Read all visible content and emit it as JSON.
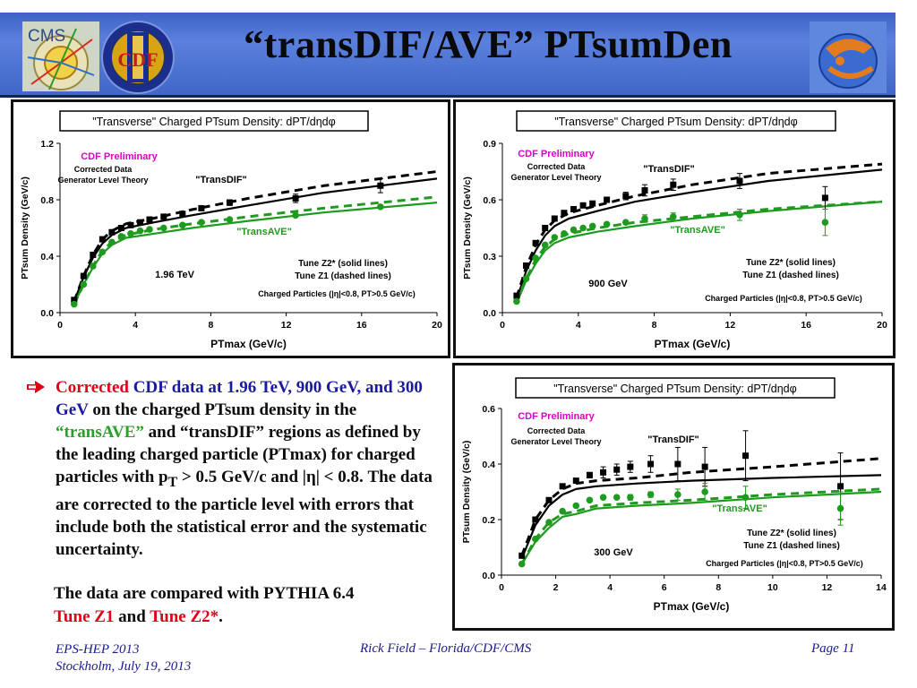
{
  "slide": {
    "title": "“transDIF/AVE” PTsumDen",
    "logos": {
      "cms_text": "CMS",
      "cdf_text": "CDF"
    }
  },
  "body": {
    "bullet_red": "Corrected",
    "bullet_blue": "CDF data at 1.96 TeV, 900 GeV, and 300 GeV",
    "bullet_a": " on the charged PTsum density in the ",
    "bullet_green": "“transAVE”",
    "bullet_b": " and “transDIF” regions as defined by the leading charged particle (PTmax) for charged particles with p",
    "bullet_sub": "T",
    "bullet_c": " > 0.5 GeV/c and |η| < 0.8. The data are corrected to the particle level with errors that include both the statistical error and the systematic uncertainty.",
    "closing_a": "The data are compared with PYTHIA 6.4",
    "closing_red1": "Tune Z1",
    "closing_and": " and ",
    "closing_red2": "Tune Z2*",
    "closing_end": "."
  },
  "footer": {
    "left1": "EPS-HEP 2013",
    "left2": "Stockholm, July 19, 2013",
    "center": "Rick Field – Florida/CDF/CMS",
    "right": "Page 11"
  },
  "colors": {
    "black": "#000000",
    "green": "#1e9a1e",
    "magenta": "#e000c8",
    "header_blue": "#4a6fd0"
  },
  "chart_data": [
    {
      "type": "line",
      "title": "\"Transverse\" Charged PTsum Density: dPT/dηdφ",
      "xlabel": "PTmax  (GeV/c)",
      "ylabel": "PTsum Density (GeV/c)",
      "xlim": [
        0,
        20
      ],
      "ylim": [
        0,
        1.2
      ],
      "xticks": [
        0,
        4,
        8,
        12,
        16,
        20
      ],
      "yticks": [
        0.0,
        0.4,
        0.8,
        1.2
      ],
      "ytick_labels": [
        "0.0",
        "0.4",
        "0.8",
        "1.2"
      ],
      "annotations": {
        "prelim": "CDF Preliminary",
        "corrected": "Corrected Data",
        "generator": "Generator Level Theory",
        "transdif": "\"TransDIF\"",
        "transave": "\"TransAVE\"",
        "energy": "1.96 TeV",
        "tune_solid": "Tune Z2* (solid lines)",
        "tune_dashed": "Tune Z1 (dashed lines)",
        "cuts": "Charged Particles (|η|<0.8, PT>0.5 GeV/c)"
      },
      "series": [
        {
          "name": "\"TransDIF\"",
          "kind": "data",
          "color": "#000000",
          "marker": "square",
          "x": [
            0.75,
            1.25,
            1.75,
            2.25,
            2.75,
            3.25,
            3.75,
            4.25,
            4.75,
            5.5,
            6.5,
            7.5,
            9,
            12.5,
            17
          ],
          "y": [
            0.09,
            0.26,
            0.41,
            0.52,
            0.57,
            0.6,
            0.62,
            0.64,
            0.66,
            0.68,
            0.7,
            0.74,
            0.78,
            0.81,
            0.9
          ],
          "err": [
            0,
            0,
            0,
            0,
            0,
            0,
            0,
            0,
            0,
            0,
            0,
            0,
            0.02,
            0.03,
            0.05
          ]
        },
        {
          "name": "\"TransAVE\"",
          "kind": "data",
          "color": "#1e9a1e",
          "marker": "circle",
          "x": [
            0.75,
            1.25,
            1.75,
            2.25,
            2.75,
            3.25,
            3.75,
            4.25,
            4.75,
            5.5,
            6.5,
            7.5,
            9,
            12.5,
            17
          ],
          "y": [
            0.06,
            0.2,
            0.33,
            0.43,
            0.5,
            0.54,
            0.56,
            0.58,
            0.59,
            0.6,
            0.62,
            0.64,
            0.66,
            0.69,
            0.75
          ],
          "err": [
            0,
            0,
            0,
            0,
            0,
            0,
            0,
            0,
            0,
            0,
            0,
            0,
            0,
            0,
            0
          ]
        },
        {
          "name": "Tune Z2* transDIF",
          "kind": "curve",
          "color": "#000000",
          "dash": false,
          "x": [
            0.75,
            1.25,
            1.75,
            2.25,
            2.75,
            3.5,
            5,
            7,
            10,
            14,
            20
          ],
          "y": [
            0.08,
            0.25,
            0.39,
            0.49,
            0.55,
            0.6,
            0.64,
            0.69,
            0.76,
            0.85,
            0.95
          ]
        },
        {
          "name": "Tune Z1 transDIF",
          "kind": "curve",
          "color": "#000000",
          "dash": true,
          "x": [
            0.75,
            1.25,
            1.75,
            2.25,
            2.75,
            3.5,
            5,
            7,
            10,
            14,
            20
          ],
          "y": [
            0.08,
            0.26,
            0.41,
            0.52,
            0.58,
            0.63,
            0.67,
            0.73,
            0.81,
            0.9,
            1.0
          ]
        },
        {
          "name": "Tune Z2* transAVE",
          "kind": "curve",
          "color": "#1e9a1e",
          "dash": false,
          "x": [
            0.75,
            1.25,
            1.75,
            2.25,
            2.75,
            3.5,
            5,
            7,
            10,
            14,
            20
          ],
          "y": [
            0.06,
            0.2,
            0.32,
            0.42,
            0.48,
            0.53,
            0.56,
            0.6,
            0.65,
            0.71,
            0.78
          ]
        },
        {
          "name": "Tune Z1 transAVE",
          "kind": "curve",
          "color": "#1e9a1e",
          "dash": true,
          "x": [
            0.75,
            1.25,
            1.75,
            2.25,
            2.75,
            3.5,
            5,
            7,
            10,
            14,
            20
          ],
          "y": [
            0.06,
            0.2,
            0.33,
            0.44,
            0.5,
            0.55,
            0.59,
            0.63,
            0.68,
            0.74,
            0.82
          ]
        }
      ]
    },
    {
      "type": "line",
      "title": "\"Transverse\" Charged PTsum Density: dPT/dηdφ",
      "xlabel": "PTmax  (GeV/c)",
      "ylabel": "PTsum Density (GeV/c)",
      "xlim": [
        0,
        20
      ],
      "ylim": [
        0,
        0.9
      ],
      "xticks": [
        0,
        4,
        8,
        12,
        16,
        20
      ],
      "yticks": [
        0.0,
        0.3,
        0.6,
        0.9
      ],
      "ytick_labels": [
        "0.0",
        "0.3",
        "0.6",
        "0.9"
      ],
      "annotations": {
        "prelim": "CDF Preliminary",
        "corrected": "Corrected Data",
        "generator": "Generator Level Theory",
        "transdif": "\"TransDIF\"",
        "transave": "\"TransAVE\"",
        "energy": "900 GeV",
        "tune_solid": "Tune Z2* (solid lines)",
        "tune_dashed": "Tune Z1 (dashed lines)",
        "cuts": "Charged Particles (|η|<0.8, PT>0.5 GeV/c)"
      },
      "series": [
        {
          "name": "\"TransDIF\"",
          "kind": "data",
          "color": "#000000",
          "marker": "square",
          "x": [
            0.75,
            1.25,
            1.75,
            2.25,
            2.75,
            3.25,
            3.75,
            4.25,
            4.75,
            5.5,
            6.5,
            7.5,
            9,
            12.5,
            17
          ],
          "y": [
            0.09,
            0.25,
            0.37,
            0.45,
            0.5,
            0.53,
            0.55,
            0.57,
            0.58,
            0.6,
            0.62,
            0.65,
            0.68,
            0.7,
            0.61
          ],
          "err": [
            0,
            0,
            0,
            0,
            0,
            0,
            0,
            0,
            0,
            0,
            0.02,
            0.03,
            0.03,
            0.04,
            0.06
          ]
        },
        {
          "name": "\"TransAVE\"",
          "kind": "data",
          "color": "#1e9a1e",
          "marker": "circle",
          "x": [
            0.75,
            1.25,
            1.75,
            2.25,
            2.75,
            3.25,
            3.75,
            4.25,
            4.75,
            5.5,
            6.5,
            7.5,
            9,
            12.5,
            17
          ],
          "y": [
            0.06,
            0.18,
            0.29,
            0.36,
            0.4,
            0.42,
            0.44,
            0.45,
            0.46,
            0.47,
            0.48,
            0.5,
            0.51,
            0.52,
            0.48
          ],
          "err": [
            0,
            0,
            0,
            0,
            0,
            0,
            0,
            0,
            0,
            0,
            0,
            0.02,
            0.02,
            0.03,
            0.07
          ]
        },
        {
          "name": "Tune Z2* transDIF",
          "kind": "curve",
          "color": "#000000",
          "dash": false,
          "x": [
            0.75,
            1.25,
            1.75,
            2.25,
            2.75,
            3.5,
            5,
            7,
            10,
            14,
            20
          ],
          "y": [
            0.07,
            0.22,
            0.33,
            0.41,
            0.46,
            0.5,
            0.54,
            0.59,
            0.64,
            0.7,
            0.76
          ]
        },
        {
          "name": "Tune Z1 transDIF",
          "kind": "curve",
          "color": "#000000",
          "dash": true,
          "x": [
            0.75,
            1.25,
            1.75,
            2.25,
            2.75,
            3.5,
            5,
            7,
            10,
            14,
            20
          ],
          "y": [
            0.08,
            0.24,
            0.36,
            0.44,
            0.49,
            0.53,
            0.57,
            0.62,
            0.68,
            0.74,
            0.79
          ]
        },
        {
          "name": "Tune Z2* transAVE",
          "kind": "curve",
          "color": "#1e9a1e",
          "dash": false,
          "x": [
            0.75,
            1.25,
            1.75,
            2.25,
            2.75,
            3.5,
            5,
            7,
            10,
            14,
            20
          ],
          "y": [
            0.05,
            0.17,
            0.26,
            0.33,
            0.37,
            0.4,
            0.43,
            0.46,
            0.5,
            0.54,
            0.59
          ]
        },
        {
          "name": "Tune Z1 transAVE",
          "kind": "curve",
          "color": "#1e9a1e",
          "dash": true,
          "x": [
            0.75,
            1.25,
            1.75,
            2.25,
            2.75,
            3.5,
            5,
            7,
            10,
            14,
            20
          ],
          "y": [
            0.06,
            0.18,
            0.28,
            0.35,
            0.39,
            0.42,
            0.45,
            0.48,
            0.51,
            0.55,
            0.59
          ]
        }
      ]
    },
    {
      "type": "line",
      "title": "\"Transverse\" Charged PTsum Density: dPT/dηdφ",
      "xlabel": "PTmax  (GeV/c)",
      "ylabel": "PTsum Density (GeV/c)",
      "xlim": [
        0,
        14
      ],
      "ylim": [
        0,
        0.6
      ],
      "xticks": [
        0,
        2,
        4,
        6,
        8,
        10,
        12,
        14
      ],
      "yticks": [
        0.0,
        0.2,
        0.4,
        0.6
      ],
      "ytick_labels": [
        "0.0",
        "0.2",
        "0.4",
        "0.6"
      ],
      "annotations": {
        "prelim": "CDF Preliminary",
        "corrected": "Corrected Data",
        "generator": "Generator Level Theory",
        "transdif": "\"TransDIF\"",
        "transave": "\"TransAVE\"",
        "energy": "300 GeV",
        "tune_solid": "Tune Z2* (solid lines)",
        "tune_dashed": "Tune Z1 (dashed lines)",
        "cuts": "Charged Particles (|η|<0.8, PT>0.5 GeV/c)"
      },
      "series": [
        {
          "name": "\"TransDIF\"",
          "kind": "data",
          "color": "#000000",
          "marker": "square",
          "x": [
            0.75,
            1.25,
            1.75,
            2.25,
            2.75,
            3.25,
            3.75,
            4.25,
            4.75,
            5.5,
            6.5,
            7.5,
            9,
            12.5
          ],
          "y": [
            0.07,
            0.2,
            0.27,
            0.32,
            0.34,
            0.36,
            0.37,
            0.38,
            0.39,
            0.4,
            0.4,
            0.39,
            0.43,
            0.32
          ],
          "err": [
            0,
            0,
            0,
            0,
            0,
            0.01,
            0.02,
            0.02,
            0.02,
            0.03,
            0.06,
            0.07,
            0.09,
            0.12
          ]
        },
        {
          "name": "\"TransAVE\"",
          "kind": "data",
          "color": "#1e9a1e",
          "marker": "circle",
          "x": [
            0.75,
            1.25,
            1.75,
            2.25,
            2.75,
            3.25,
            3.75,
            4.25,
            4.75,
            5.5,
            6.5,
            7.5,
            9,
            12.5
          ],
          "y": [
            0.04,
            0.13,
            0.19,
            0.23,
            0.25,
            0.27,
            0.28,
            0.28,
            0.28,
            0.29,
            0.29,
            0.3,
            0.28,
            0.24
          ],
          "err": [
            0,
            0,
            0,
            0,
            0,
            0,
            0,
            0,
            0.01,
            0.01,
            0.02,
            0.03,
            0.04,
            0.06
          ]
        },
        {
          "name": "Tune Z2* transDIF",
          "kind": "curve",
          "color": "#000000",
          "dash": false,
          "x": [
            0.75,
            1.25,
            1.75,
            2.25,
            2.75,
            3.5,
            5,
            7,
            10,
            14
          ],
          "y": [
            0.06,
            0.18,
            0.25,
            0.29,
            0.31,
            0.32,
            0.33,
            0.34,
            0.35,
            0.36
          ]
        },
        {
          "name": "Tune Z1 transDIF",
          "kind": "curve",
          "color": "#000000",
          "dash": true,
          "x": [
            0.75,
            1.25,
            1.75,
            2.25,
            2.75,
            3.5,
            5,
            7,
            10,
            14
          ],
          "y": [
            0.07,
            0.2,
            0.27,
            0.31,
            0.33,
            0.34,
            0.35,
            0.37,
            0.39,
            0.42
          ]
        },
        {
          "name": "Tune Z2* transAVE",
          "kind": "curve",
          "color": "#1e9a1e",
          "dash": false,
          "x": [
            0.75,
            1.25,
            1.75,
            2.25,
            2.75,
            3.5,
            5,
            7,
            10,
            14
          ],
          "y": [
            0.04,
            0.12,
            0.17,
            0.21,
            0.22,
            0.24,
            0.25,
            0.26,
            0.28,
            0.3
          ]
        },
        {
          "name": "Tune Z1 transAVE",
          "kind": "curve",
          "color": "#1e9a1e",
          "dash": true,
          "x": [
            0.75,
            1.25,
            1.75,
            2.25,
            2.75,
            3.5,
            5,
            7,
            10,
            14
          ],
          "y": [
            0.04,
            0.13,
            0.19,
            0.22,
            0.23,
            0.25,
            0.26,
            0.27,
            0.29,
            0.31
          ]
        }
      ]
    }
  ]
}
